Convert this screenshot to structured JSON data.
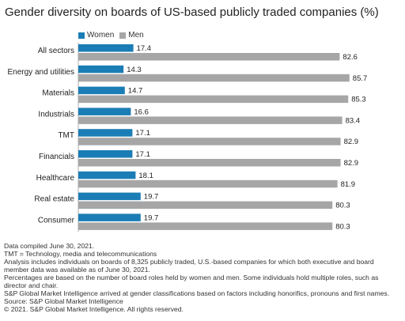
{
  "title": "Gender diversity on boards of US-based publicly traded companies (%)",
  "colors": {
    "women": "#1b7db5",
    "men": "#a6a6a6"
  },
  "chart_data": {
    "type": "bar",
    "orientation": "horizontal",
    "categories": [
      "All sectors",
      "Energy and utilities",
      "Materials",
      "Industrials",
      "TMT",
      "Financials",
      "Healthcare",
      "Real estate",
      "Consumer"
    ],
    "series": [
      {
        "name": "Women",
        "values": [
          17.4,
          14.3,
          14.7,
          16.6,
          17.1,
          17.1,
          18.1,
          19.7,
          19.7
        ]
      },
      {
        "name": "Men",
        "values": [
          82.6,
          85.7,
          85.3,
          83.4,
          82.9,
          82.9,
          81.9,
          80.3,
          80.3
        ]
      }
    ],
    "data_labels": {
      "Women": [
        "17.4",
        "14.3",
        "14.7",
        "16.6",
        "17.1",
        "17.1",
        "18.1",
        "19.7",
        "19.7"
      ],
      "Men": [
        "82.6",
        "85.7",
        "85.3",
        "83.4",
        "82.9",
        "82.9",
        "81.9",
        "80.3",
        "80.3"
      ]
    },
    "xlim": [
      0,
      100
    ],
    "legend": "top-left",
    "grid": false
  },
  "notes": [
    "Data compiled June 30, 2021.",
    "TMT = Technology, media and telecommunications",
    "Analysis includes individuals on boards of 8,325 publicly traded, U.S.-based companies for which both executive and board",
    "member data was available as of June 30, 2021.",
    "Percentages are based on the number of board roles held by women and men. Some individuals hold multiple roles, such as",
    "director and chair.",
    "S&P Global Market Intelligence arrived at gender classifications based on factors including honorifics, pronouns and first names.",
    "Source: S&P Global Market Intelligence",
    "© 2021. S&P Global Market Intelligence. All rights reserved."
  ]
}
